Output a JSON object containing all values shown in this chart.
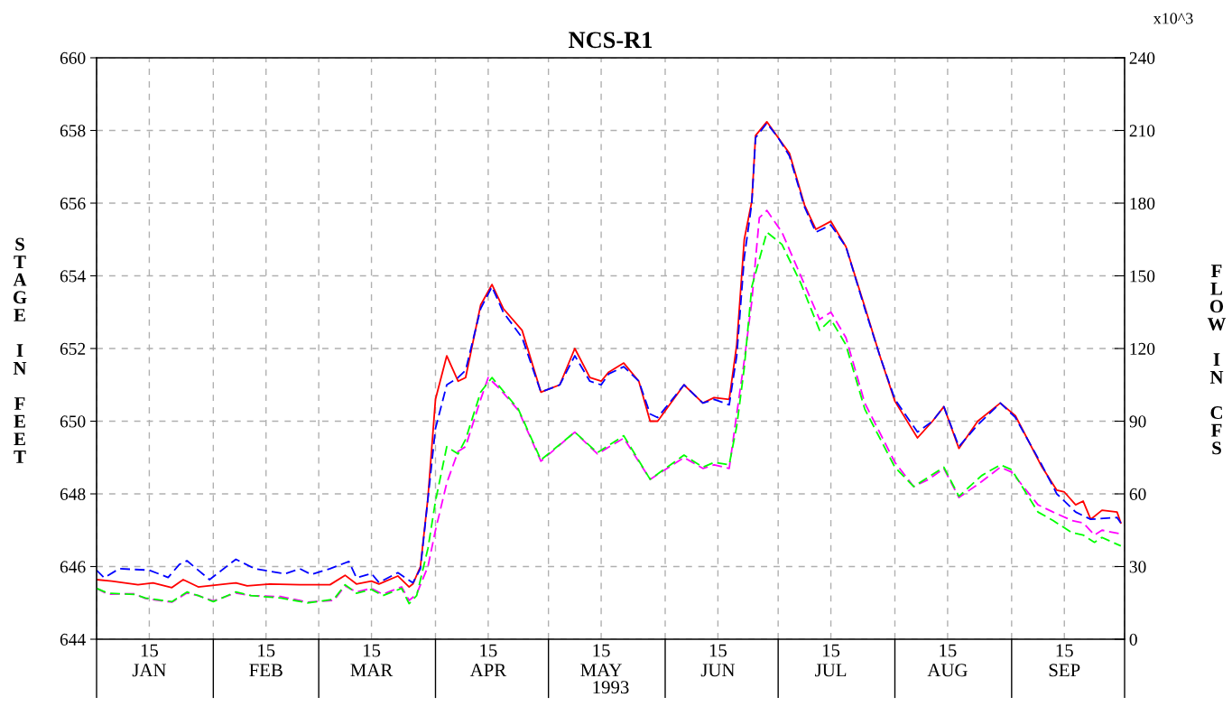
{
  "chart_data": {
    "type": "line",
    "title": "NCS-R1",
    "xlabel": "1993",
    "ylabel": "STAGE IN FEET",
    "y2label": "FLOW IN CFS",
    "annotations": [
      "x10^3"
    ],
    "xlim": [
      "1993-01-01",
      "1993-10-01"
    ],
    "xticks": [
      {
        "value": "1993-01-01",
        "label": null
      },
      {
        "value": "1993-01-15",
        "label": "15\nJAN"
      },
      {
        "value": "1993-02-01",
        "label": null
      },
      {
        "value": "1993-02-15",
        "label": "15\nFEB"
      },
      {
        "value": "1993-03-01",
        "label": null
      },
      {
        "value": "1993-03-15",
        "label": "15\nMAR"
      },
      {
        "value": "1993-04-01",
        "label": null
      },
      {
        "value": "1993-04-15",
        "label": "15\nAPR"
      },
      {
        "value": "1993-05-01",
        "label": null
      },
      {
        "value": "1993-05-15",
        "label": "15\nMAY"
      },
      {
        "value": "1993-06-01",
        "label": null
      },
      {
        "value": "1993-06-15",
        "label": "15\nJUN"
      },
      {
        "value": "1993-07-01",
        "label": null
      },
      {
        "value": "1993-07-15",
        "label": "15\nJUL"
      },
      {
        "value": "1993-08-01",
        "label": null
      },
      {
        "value": "1993-08-15",
        "label": "15\nAUG"
      },
      {
        "value": "1993-09-01",
        "label": null
      },
      {
        "value": "1993-09-15",
        "label": "15\nSEP"
      },
      {
        "value": "1993-10-01",
        "label": null
      }
    ],
    "ylim": [
      644,
      660
    ],
    "yticks": [
      644,
      646,
      648,
      650,
      652,
      654,
      656,
      658,
      660
    ],
    "y2lim": [
      0,
      240
    ],
    "y2ticks": [
      0,
      30,
      60,
      90,
      120,
      150,
      180,
      210,
      240
    ],
    "grid": true,
    "series": [
      {
        "color": "#ff0000",
        "line_style": "solid",
        "x": [
          "1993-01-01",
          "1993-01-05",
          "1993-01-12",
          "1993-01-16",
          "1993-01-21",
          "1993-01-24",
          "1993-01-28",
          "1993-02-07",
          "1993-02-10",
          "1993-02-16",
          "1993-02-24",
          "1993-03-04",
          "1993-03-08",
          "1993-03-11",
          "1993-03-15",
          "1993-03-17",
          "1993-03-22",
          "1993-03-25",
          "1993-03-26",
          "1993-03-28",
          "1993-03-30",
          "1993-04-01",
          "1993-04-04",
          "1993-04-07",
          "1993-04-09",
          "1993-04-13",
          "1993-04-16",
          "1993-04-19",
          "1993-04-24",
          "1993-04-29",
          "1993-05-04",
          "1993-05-08",
          "1993-05-12",
          "1993-05-15",
          "1993-05-17",
          "1993-05-21",
          "1993-05-25",
          "1993-05-28",
          "1993-05-30",
          "1993-06-06",
          "1993-06-11",
          "1993-06-14",
          "1993-06-18",
          "1993-06-20",
          "1993-06-22",
          "1993-06-24",
          "1993-06-25",
          "1993-06-28",
          "1993-07-01",
          "1993-07-04",
          "1993-07-08",
          "1993-07-11",
          "1993-07-15",
          "1993-07-19",
          "1993-07-24",
          "1993-07-28",
          "1993-08-01",
          "1993-08-07",
          "1993-08-11",
          "1993-08-14",
          "1993-08-18",
          "1993-08-23",
          "1993-08-29",
          "1993-09-02",
          "1993-09-09",
          "1993-09-13",
          "1993-09-15",
          "1993-09-18",
          "1993-09-20",
          "1993-09-22",
          "1993-09-25",
          "1993-09-29",
          "1993-09-30"
        ],
        "values": [
          645.64,
          645.6,
          645.5,
          645.55,
          645.42,
          645.64,
          645.44,
          645.55,
          645.47,
          645.52,
          645.5,
          645.5,
          645.76,
          645.52,
          645.6,
          645.52,
          645.74,
          645.44,
          645.52,
          646.0,
          647.9,
          650.6,
          651.8,
          651.1,
          651.2,
          653.2,
          653.76,
          653.1,
          652.5,
          650.8,
          651.0,
          652.0,
          651.2,
          651.1,
          651.35,
          651.6,
          651.1,
          650.0,
          650.0,
          651.0,
          650.5,
          650.65,
          650.6,
          652.1,
          655.0,
          656.05,
          657.86,
          658.24,
          657.8,
          657.37,
          655.95,
          655.28,
          655.5,
          654.8,
          653.15,
          651.8,
          650.55,
          649.54,
          650.0,
          650.4,
          649.25,
          650.0,
          650.5,
          650.15,
          648.75,
          648.1,
          648.05,
          647.7,
          647.8,
          647.3,
          647.55,
          647.5,
          647.2
        ]
      },
      {
        "color": "#0000ff",
        "line_style": "dashed",
        "x": [
          "1993-01-01",
          "1993-01-03",
          "1993-01-07",
          "1993-01-15",
          "1993-01-20",
          "1993-01-23",
          "1993-01-25",
          "1993-01-31",
          "1993-02-07",
          "1993-02-12",
          "1993-02-20",
          "1993-02-24",
          "1993-02-27",
          "1993-03-04",
          "1993-03-09",
          "1993-03-11",
          "1993-03-15",
          "1993-03-17",
          "1993-03-22",
          "1993-03-26",
          "1993-03-28",
          "1993-04-01",
          "1993-04-04",
          "1993-04-07",
          "1993-04-09",
          "1993-04-13",
          "1993-04-16",
          "1993-04-19",
          "1993-04-24",
          "1993-04-29",
          "1993-05-04",
          "1993-05-08",
          "1993-05-12",
          "1993-05-15",
          "1993-05-17",
          "1993-05-21",
          "1993-05-25",
          "1993-05-28",
          "1993-05-30",
          "1993-06-06",
          "1993-06-11",
          "1993-06-14",
          "1993-06-18",
          "1993-06-20",
          "1993-06-22",
          "1993-06-24",
          "1993-06-25",
          "1993-06-28",
          "1993-07-01",
          "1993-07-04",
          "1993-07-08",
          "1993-07-11",
          "1993-07-15",
          "1993-07-19",
          "1993-07-24",
          "1993-07-28",
          "1993-08-01",
          "1993-08-07",
          "1993-08-11",
          "1993-08-14",
          "1993-08-18",
          "1993-08-23",
          "1993-08-29",
          "1993-09-02",
          "1993-09-09",
          "1993-09-13",
          "1993-09-18",
          "1993-09-22",
          "1993-09-29",
          "1993-09-30"
        ],
        "values": [
          645.9,
          645.69,
          645.94,
          645.9,
          645.7,
          646.06,
          646.16,
          645.64,
          646.2,
          645.94,
          645.8,
          645.94,
          645.78,
          645.94,
          646.14,
          645.69,
          645.81,
          645.56,
          645.83,
          645.55,
          645.94,
          649.8,
          651.0,
          651.2,
          651.4,
          653.1,
          653.7,
          653.0,
          652.3,
          650.8,
          651.0,
          651.8,
          651.1,
          651.0,
          651.3,
          651.5,
          651.1,
          650.2,
          650.1,
          651.0,
          650.5,
          650.6,
          650.45,
          651.8,
          654.5,
          656.0,
          657.8,
          658.2,
          657.8,
          657.3,
          655.9,
          655.2,
          655.4,
          654.8,
          653.1,
          651.8,
          650.6,
          649.7,
          650.0,
          650.4,
          649.3,
          649.9,
          650.5,
          650.1,
          648.8,
          648.0,
          647.5,
          647.3,
          647.35,
          647.2
        ]
      },
      {
        "color": "#ff00ff",
        "line_style": "dashed",
        "axis": "y2",
        "x": [
          "1993-01-01",
          "1993-01-04",
          "1993-01-11",
          "1993-01-14",
          "1993-01-21",
          "1993-01-25",
          "1993-01-28",
          "1993-02-01",
          "1993-02-07",
          "1993-02-11",
          "1993-02-19",
          "1993-02-26",
          "1993-03-05",
          "1993-03-08",
          "1993-03-11",
          "1993-03-15",
          "1993-03-18",
          "1993-03-23",
          "1993-03-25",
          "1993-03-27",
          "1993-03-30",
          "1993-04-01",
          "1993-04-04",
          "1993-04-07",
          "1993-04-09",
          "1993-04-13",
          "1993-04-15",
          "1993-04-18",
          "1993-04-23",
          "1993-04-29",
          "1993-05-08",
          "1993-05-14",
          "1993-05-21",
          "1993-05-28",
          "1993-06-06",
          "1993-06-11",
          "1993-06-14",
          "1993-06-18",
          "1993-06-20",
          "1993-06-22",
          "1993-06-24",
          "1993-06-26",
          "1993-06-28",
          "1993-07-02",
          "1993-07-07",
          "1993-07-12",
          "1993-07-15",
          "1993-07-19",
          "1993-07-24",
          "1993-08-01",
          "1993-08-06",
          "1993-08-10",
          "1993-08-14",
          "1993-08-18",
          "1993-08-24",
          "1993-08-29",
          "1993-09-01",
          "1993-09-08",
          "1993-09-12",
          "1993-09-17",
          "1993-09-20",
          "1993-09-23",
          "1993-09-25",
          "1993-09-30"
        ],
        "values": [
          21,
          18.6,
          18.8,
          16.8,
          15.3,
          19.1,
          18,
          15.8,
          19.1,
          18,
          17.6,
          15.3,
          16,
          22,
          19.5,
          21,
          18.6,
          21.6,
          16,
          18.6,
          30,
          45,
          64.5,
          77.5,
          79.5,
          99,
          108,
          103.5,
          94.5,
          73.5,
          85.5,
          76.5,
          83,
          66,
          75,
          70.5,
          72,
          70.5,
          93,
          115,
          139.5,
          174,
          177,
          168,
          150,
          132,
          135,
          124.5,
          97.5,
          73,
          63,
          66,
          70.5,
          58.5,
          65,
          71,
          69,
          55.5,
          52.5,
          49,
          48,
          43,
          45,
          43.5
        ]
      },
      {
        "color": "#00ff00",
        "line_style": "dashed",
        "axis": "y2",
        "x": [
          "1993-01-01",
          "1993-01-04",
          "1993-01-11",
          "1993-01-14",
          "1993-01-21",
          "1993-01-25",
          "1993-01-28",
          "1993-02-01",
          "1993-02-07",
          "1993-02-11",
          "1993-02-19",
          "1993-02-26",
          "1993-03-05",
          "1993-03-08",
          "1993-03-11",
          "1993-03-15",
          "1993-03-18",
          "1993-03-23",
          "1993-03-25",
          "1993-03-27",
          "1993-03-30",
          "1993-04-01",
          "1993-04-04",
          "1993-04-07",
          "1993-04-09",
          "1993-04-13",
          "1993-04-16",
          "1993-04-23",
          "1993-04-29",
          "1993-05-08",
          "1993-05-14",
          "1993-05-21",
          "1993-05-28",
          "1993-06-06",
          "1993-06-11",
          "1993-06-14",
          "1993-06-18",
          "1993-06-20",
          "1993-06-22",
          "1993-06-24",
          "1993-06-28",
          "1993-07-02",
          "1993-07-07",
          "1993-07-12",
          "1993-07-15",
          "1993-07-19",
          "1993-07-24",
          "1993-08-01",
          "1993-08-06",
          "1993-08-10",
          "1993-08-14",
          "1993-08-18",
          "1993-08-24",
          "1993-08-29",
          "1993-09-01",
          "1993-09-08",
          "1993-09-12",
          "1993-09-17",
          "1993-09-20",
          "1993-09-23",
          "1993-09-25",
          "1993-09-30"
        ],
        "values": [
          21,
          19,
          18.5,
          17,
          15.5,
          19.5,
          18,
          15.5,
          19.5,
          18,
          17,
          15,
          16.5,
          22.5,
          19,
          20.5,
          18,
          21,
          14.7,
          18,
          37.5,
          57,
          79.5,
          76.5,
          82.5,
          102,
          108,
          95,
          74,
          85.5,
          77,
          84,
          66,
          76,
          71,
          73,
          72,
          88,
          112,
          145.5,
          168,
          163,
          147,
          127.5,
          132,
          121.5,
          95,
          71,
          63,
          67,
          71,
          59,
          67.5,
          72,
          70,
          52.5,
          49,
          44,
          43,
          40,
          42,
          38.5
        ]
      }
    ]
  }
}
